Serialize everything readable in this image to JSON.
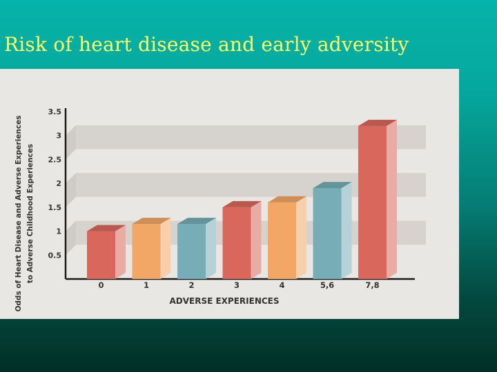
{
  "slide": {
    "title": "Risk of heart disease and early adversity"
  },
  "chart_data": {
    "type": "bar",
    "title": "",
    "xlabel": "ADVERSE EXPERIENCES",
    "ylabel_line1": "Odds of Heart Disease and Adverse Experiences",
    "ylabel_line2": "to Adverse Childhood Experiences",
    "ylim": [
      0,
      3.5
    ],
    "yticks": [
      "0.5",
      "1",
      "1.5",
      "2",
      "2.5",
      "3",
      "3.5"
    ],
    "categories": [
      "0",
      "1",
      "2",
      "3",
      "4",
      "5,6",
      "7,8"
    ],
    "values": [
      1.0,
      1.15,
      1.15,
      1.5,
      1.6,
      1.9,
      3.2
    ],
    "colors": [
      "#d9675c",
      "#f3a766",
      "#76adb6",
      "#d9675c",
      "#f3a766",
      "#76adb6",
      "#d9675c"
    ],
    "grid": true
  }
}
